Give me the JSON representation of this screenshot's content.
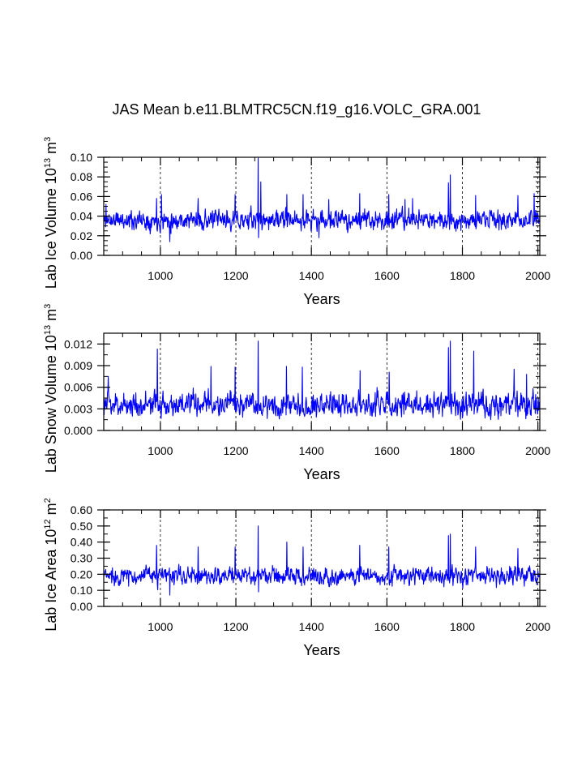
{
  "title": "JAS Mean b.e11.BLMTRC5CN.f19_g16.VOLC_GRA.001",
  "colors": {
    "line": "#0000ff",
    "axis": "#000000",
    "grid": "#000000"
  },
  "chart_data": [
    {
      "type": "line",
      "panel": "ice-volume",
      "xlabel": "Years",
      "ylabel": {
        "text": "Lab Ice Volume 10",
        "exp": "13",
        "unit": " m",
        "unit_exp": "3"
      },
      "xlim": [
        850,
        2005
      ],
      "ylim": [
        0,
        0.1
      ],
      "xticks": [
        1000,
        1200,
        1400,
        1600,
        1800,
        2000
      ],
      "yticks": [
        0,
        0.02,
        0.04,
        0.06,
        0.08,
        0.1
      ],
      "ytick_labels": [
        "0.00",
        "0.02",
        "0.04",
        "0.06",
        "0.08",
        "0.10"
      ],
      "minor_x": 50,
      "minor_y": 0.005,
      "grid_x": [
        1000,
        1200,
        1400,
        1600,
        1800,
        2000
      ],
      "series": {
        "name": "Lab Ice Volume",
        "base": 0.036,
        "noise": 0.007,
        "spikes": [
          [
            856,
            0.052
          ],
          [
            990,
            0.058
          ],
          [
            1003,
            0.062
          ],
          [
            1025,
            0.014
          ],
          [
            1100,
            0.058
          ],
          [
            1198,
            0.062
          ],
          [
            1259,
            0.099
          ],
          [
            1266,
            0.075
          ],
          [
            1335,
            0.062
          ],
          [
            1378,
            0.062
          ],
          [
            1446,
            0.057
          ],
          [
            1528,
            0.063
          ],
          [
            1605,
            0.062
          ],
          [
            1648,
            0.057
          ],
          [
            1668,
            0.058
          ],
          [
            1763,
            0.074
          ],
          [
            1768,
            0.082
          ],
          [
            1835,
            0.061
          ],
          [
            1947,
            0.061
          ],
          [
            1990,
            0.063
          ],
          [
            1260,
            0.018
          ],
          [
            1420,
            0.018
          ]
        ],
        "min": 0.014,
        "max": 0.099
      }
    },
    {
      "type": "line",
      "panel": "snow-volume",
      "xlabel": "Years",
      "ylabel": {
        "text": "Lab Snow Volume 10",
        "exp": "13",
        "unit": " m",
        "unit_exp": "3"
      },
      "xlim": [
        850,
        2005
      ],
      "ylim": [
        0,
        0.0135
      ],
      "xticks": [
        1000,
        1200,
        1400,
        1600,
        1800,
        2000
      ],
      "yticks": [
        0,
        0.003,
        0.006,
        0.009,
        0.012
      ],
      "ytick_labels": [
        "0.000",
        "0.003",
        "0.006",
        "0.009",
        "0.012"
      ],
      "minor_x": 50,
      "minor_y": 0.0015,
      "grid_x": [
        1000,
        1200,
        1400,
        1600,
        1800,
        2000
      ],
      "series": {
        "name": "Lab Snow Volume",
        "base": 0.0036,
        "noise": 0.0012,
        "spikes": [
          [
            862,
            0.0075
          ],
          [
            992,
            0.0113
          ],
          [
            1134,
            0.0089
          ],
          [
            1198,
            0.0088
          ],
          [
            1259,
            0.0124
          ],
          [
            1334,
            0.0089
          ],
          [
            1376,
            0.0088
          ],
          [
            1529,
            0.0083
          ],
          [
            1606,
            0.0081
          ],
          [
            1763,
            0.0115
          ],
          [
            1768,
            0.0124
          ],
          [
            1830,
            0.011
          ],
          [
            1937,
            0.0085
          ],
          [
            1970,
            0.0078
          ]
        ],
        "min": 0.0008,
        "max": 0.0124
      }
    },
    {
      "type": "line",
      "panel": "ice-area",
      "xlabel": "Years",
      "ylabel": {
        "text": "Lab Ice Area 10",
        "exp": "12",
        "unit": " m",
        "unit_exp": "2"
      },
      "xlim": [
        850,
        2005
      ],
      "ylim": [
        0,
        0.6
      ],
      "xticks": [
        1000,
        1200,
        1400,
        1600,
        1800,
        2000
      ],
      "yticks": [
        0,
        0.1,
        0.2,
        0.3,
        0.4,
        0.5,
        0.6
      ],
      "ytick_labels": [
        "0.00",
        "0.10",
        "0.20",
        "0.30",
        "0.40",
        "0.50",
        "0.60"
      ],
      "minor_x": 50,
      "minor_y": 0.05,
      "grid_x": [
        1000,
        1200,
        1400,
        1600,
        1800,
        2000
      ],
      "series": {
        "name": "Lab Ice Area",
        "base": 0.19,
        "noise": 0.04,
        "spikes": [
          [
            990,
            0.38
          ],
          [
            1100,
            0.37
          ],
          [
            1198,
            0.37
          ],
          [
            1259,
            0.5
          ],
          [
            1335,
            0.4
          ],
          [
            1378,
            0.37
          ],
          [
            1528,
            0.38
          ],
          [
            1605,
            0.37
          ],
          [
            1763,
            0.44
          ],
          [
            1768,
            0.45
          ],
          [
            1835,
            0.37
          ],
          [
            1947,
            0.36
          ],
          [
            1025,
            0.07
          ],
          [
            1260,
            0.09
          ]
        ],
        "min": 0.07,
        "max": 0.5
      }
    }
  ]
}
